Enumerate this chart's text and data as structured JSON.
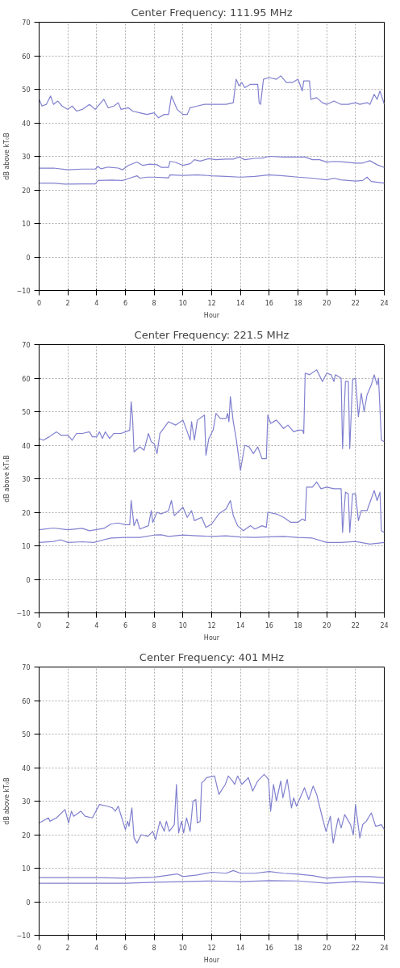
{
  "chart_data": [
    {
      "type": "line",
      "title": "Center Frequency: 111.95 MHz",
      "xlabel": "Hour",
      "ylabel": "dB above kT₀B",
      "xlim": [
        0,
        24
      ],
      "ylim": [
        -10,
        70
      ],
      "xticks": [
        0,
        2,
        4,
        6,
        8,
        10,
        12,
        14,
        16,
        18,
        20,
        22,
        24
      ],
      "yticks": [
        -10,
        0,
        10,
        20,
        30,
        40,
        50,
        60,
        70
      ],
      "grid": true,
      "line_style": "solid",
      "marker": "none",
      "series": [
        {
          "color": "#8080d0",
          "x": [
            0,
            0.2,
            0.5,
            0.8,
            1.0,
            1.3,
            1.6,
            2,
            2.3,
            2.6,
            3,
            3.5,
            3.9,
            4.2,
            4.5,
            4.8,
            5.2,
            5.5,
            5.7,
            6.2,
            6.5,
            7,
            7.5,
            8,
            8.3,
            8.7,
            9.0,
            9.2,
            9.6,
            10,
            10.3,
            10.5,
            11,
            11.5,
            12,
            12.5,
            13,
            13.5,
            13.7,
            13.9,
            14.1,
            14.3,
            14.7,
            15.2,
            15.3,
            15.4,
            15.6,
            16,
            16.5,
            16.8,
            17.2,
            17.6,
            18,
            18.3,
            18.4,
            18.8,
            18.9,
            19.3,
            19.7,
            20,
            20.5,
            21,
            21.5,
            22,
            22.3,
            22.8,
            23,
            23.3,
            23.5,
            23.7,
            24
          ],
          "values": [
            47,
            45,
            45.5,
            48,
            45.5,
            46.5,
            45,
            44,
            45,
            43.5,
            44,
            45.5,
            44,
            45.5,
            47,
            44.5,
            45,
            46,
            44,
            44.5,
            43.5,
            43,
            42.5,
            43,
            41.5,
            42.5,
            42.5,
            48,
            44,
            42.5,
            42.5,
            44.5,
            45,
            45.5,
            45.5,
            45.5,
            45.5,
            46,
            53,
            51,
            52,
            50.5,
            51.5,
            51.5,
            46,
            45.5,
            53,
            53.5,
            53,
            54,
            52,
            52,
            53,
            49.5,
            52.5,
            52.5,
            47,
            47.5,
            46,
            45.5,
            46.5,
            45.5,
            45.5,
            46,
            45.5,
            46,
            45.5,
            48.5,
            47,
            49.5,
            45.5
          ]
        },
        {
          "color": "#8080d0",
          "x": [
            0,
            1,
            2,
            3,
            3.9,
            4.1,
            4.3,
            4.8,
            5.5,
            5.8,
            6.2,
            6.8,
            7.2,
            7.7,
            8.2,
            8.5,
            9,
            9.1,
            9.5,
            10,
            10.5,
            10.8,
            11.2,
            11.8,
            12.3,
            13,
            13.5,
            13.9,
            14.3,
            15,
            15.5,
            16,
            17,
            18,
            18.5,
            19,
            19.5,
            20,
            20.5,
            21,
            22,
            22.5,
            23,
            23.5,
            24
          ],
          "values": [
            26.5,
            26.5,
            26,
            26.2,
            26.2,
            27,
            26.3,
            26.8,
            26.5,
            26,
            27.3,
            28.3,
            27.3,
            27.7,
            27.5,
            26.7,
            26.7,
            28.5,
            28.2,
            27.3,
            27.8,
            29,
            28.6,
            29.3,
            29,
            29.2,
            29.2,
            29.8,
            29,
            29.4,
            29.5,
            30,
            29.8,
            29.8,
            29.8,
            29,
            29,
            28.3,
            28.5,
            28.4,
            28,
            28,
            28.7,
            27.5,
            26.7
          ]
        },
        {
          "color": "#8080d0",
          "x": [
            0,
            1,
            1.8,
            3,
            3.9,
            4.1,
            5,
            5.8,
            6.3,
            6.8,
            7,
            7.5,
            8,
            9,
            9.1,
            10,
            11,
            12,
            13,
            14,
            15,
            16,
            17,
            18,
            19,
            20,
            20.5,
            21,
            22,
            22.5,
            22.8,
            23.1,
            24
          ],
          "values": [
            22,
            22,
            21.7,
            21.8,
            21.8,
            22.8,
            22.9,
            22.8,
            23.5,
            24.2,
            23.5,
            23.8,
            23.8,
            23.6,
            24.5,
            24.3,
            24.5,
            24.2,
            24,
            23.8,
            24,
            24.5,
            24.2,
            23.8,
            23.5,
            23,
            23.5,
            23,
            22.6,
            22.8,
            23.8,
            22.5,
            22
          ]
        }
      ]
    },
    {
      "type": "line",
      "title": "Center Frequency: 221.5 MHz",
      "xlabel": "Hour",
      "ylabel": "dB above kT₀B",
      "xlim": [
        0,
        24
      ],
      "ylim": [
        -10,
        70
      ],
      "xticks": [
        0,
        2,
        4,
        6,
        8,
        10,
        12,
        14,
        16,
        18,
        20,
        22,
        24
      ],
      "yticks": [
        -10,
        0,
        10,
        20,
        30,
        40,
        50,
        60,
        70
      ],
      "grid": true,
      "line_style": "solid",
      "marker": "none",
      "series": [
        {
          "color": "#8080d0",
          "x": [
            0,
            0.3,
            0.7,
            1.2,
            1.5,
            2,
            2.3,
            2.6,
            3,
            3.5,
            3.7,
            4,
            4.2,
            4.4,
            4.6,
            4.9,
            5.2,
            5.7,
            6,
            6.3,
            6.4,
            6.5,
            6.6,
            7,
            7.3,
            7.6,
            7.8,
            8,
            8.2,
            8.4,
            9,
            9.5,
            10,
            10.3,
            10.5,
            10.6,
            10.8,
            11,
            11.5,
            11.6,
            11.8,
            12.1,
            12.3,
            12.6,
            13,
            13.1,
            13.2,
            13.3,
            13.5,
            13.7,
            14,
            14.3,
            14.6,
            14.9,
            15.2,
            15.5,
            15.8,
            15.9,
            16.1,
            16.5,
            17,
            17.3,
            17.7,
            18,
            18.3,
            18.4,
            18.5,
            18.8,
            19.3,
            19.7,
            20,
            20.3,
            20.5,
            20.6,
            21,
            21.1,
            21.3,
            21.5,
            21.6,
            21.8,
            22,
            22.2,
            22.4,
            22.6,
            22.8,
            23.1,
            23.3,
            23.5,
            23.6,
            23.8,
            24
          ],
          "values": [
            42,
            41.5,
            42.5,
            44,
            43,
            43,
            41.5,
            43.5,
            43.5,
            44,
            42.5,
            42.5,
            44,
            42,
            44,
            42,
            43.5,
            43.5,
            44,
            44.5,
            53,
            48,
            38,
            39.5,
            38.5,
            43.5,
            41,
            40.5,
            37.5,
            43.5,
            47,
            46,
            47.5,
            44,
            41.5,
            47,
            41.5,
            47.5,
            49,
            37,
            42,
            44.5,
            49.5,
            48,
            48,
            49.5,
            47,
            54.5,
            47,
            42,
            32.5,
            40,
            39.5,
            37.5,
            39.5,
            36,
            36,
            49,
            46.5,
            47.5,
            45,
            46,
            44,
            44.5,
            44.5,
            43.5,
            61.5,
            61,
            62.5,
            59,
            61.5,
            61,
            59,
            61,
            60,
            39,
            59,
            59,
            39,
            59.5,
            60,
            48.5,
            55.5,
            50,
            55,
            58,
            61,
            58,
            60,
            41.5,
            41
          ]
        },
        {
          "color": "#8080d0",
          "x": [
            0,
            1,
            2,
            3,
            3.5,
            4.5,
            5,
            5.5,
            6,
            6.3,
            6.4,
            6.6,
            6.8,
            7,
            7.6,
            7.8,
            7.9,
            8.2,
            8.5,
            9,
            9.2,
            9.4,
            10,
            10.3,
            10.6,
            10.8,
            11.3,
            11.6,
            12,
            12.5,
            13,
            13.3,
            13.5,
            13.8,
            14.2,
            14.7,
            15,
            15.5,
            15.8,
            15.9,
            16.5,
            17,
            17.5,
            18,
            18.3,
            18.5,
            18.6,
            19,
            19.3,
            19.6,
            20,
            20.5,
            21,
            21.1,
            21.3,
            21.5,
            21.6,
            21.8,
            22,
            22.2,
            22.4,
            22.8,
            23.3,
            23.5,
            23.7,
            23.8,
            24
          ],
          "values": [
            14.8,
            15.3,
            14.8,
            15.2,
            14.5,
            15.2,
            16.5,
            16.8,
            16.3,
            16.3,
            23.5,
            16,
            18,
            15,
            16,
            20.5,
            17,
            20,
            19.5,
            20.5,
            23.5,
            19,
            21.5,
            18.5,
            20.5,
            17.5,
            18.5,
            15.5,
            16.5,
            19.5,
            21,
            23.5,
            19,
            16,
            14.5,
            16,
            15,
            16,
            15.5,
            20,
            19.5,
            18.5,
            17,
            17,
            18,
            17.5,
            27.5,
            27.5,
            29,
            27,
            27.5,
            27,
            27,
            14,
            26,
            25.5,
            14,
            25.5,
            25.5,
            17.5,
            20.5,
            20.5,
            26.5,
            23.5,
            26,
            14.5,
            14
          ]
        },
        {
          "color": "#8080d0",
          "x": [
            0,
            1,
            1.5,
            2,
            3,
            3.8,
            4.5,
            5,
            6,
            7,
            8,
            8.5,
            9,
            10,
            11,
            12,
            13,
            14,
            15,
            16,
            17,
            18,
            19,
            20,
            21,
            22,
            23,
            24
          ],
          "values": [
            11,
            11.3,
            11.8,
            11,
            11.2,
            11,
            11.8,
            12.3,
            12.5,
            12.5,
            13.2,
            13.3,
            12.8,
            13.2,
            13,
            12.8,
            13,
            12.6,
            12.5,
            12.7,
            12.8,
            12.5,
            12.3,
            11,
            11,
            11.3,
            10.5,
            11
          ]
        }
      ]
    },
    {
      "type": "line",
      "title": "Center Frequency: 401 MHz",
      "xlabel": "Hour",
      "ylabel": "dB above kT₀B",
      "xlim": [
        0,
        24
      ],
      "ylim": [
        -10,
        70
      ],
      "xticks": [
        0,
        2,
        4,
        6,
        8,
        10,
        12,
        14,
        16,
        18,
        20,
        22,
        24
      ],
      "yticks": [
        -10,
        0,
        10,
        20,
        30,
        40,
        50,
        60,
        70
      ],
      "grid": true,
      "line_style": "solid",
      "marker": "none",
      "series": [
        {
          "color": "#8080d0",
          "x": [
            0,
            0.65,
            0.75,
            1.2,
            1.8,
            2.05,
            2.25,
            2.4,
            2.9,
            3.2,
            3.7,
            4.2,
            4.75,
            5.1,
            5.3,
            5.5,
            6.0,
            6.15,
            6.25,
            6.45,
            6.6,
            6.8,
            7.1,
            7.55,
            7.9,
            8.1,
            8.4,
            8.7,
            8.85,
            9.05,
            9.4,
            9.55,
            9.7,
            9.9,
            10.05,
            10.25,
            10.5,
            10.7,
            10.9,
            11.0,
            11.2,
            11.3,
            11.45,
            11.65,
            12.2,
            12.5,
            12.95,
            13.15,
            13.45,
            13.6,
            13.8,
            14.1,
            14.55,
            14.85,
            15.2,
            15.65,
            15.95,
            16.1,
            16.3,
            16.5,
            16.8,
            16.95,
            17.25,
            17.55,
            17.7,
            17.9,
            18.45,
            18.75,
            19.05,
            19.3,
            19.7,
            19.95,
            20.25,
            20.45,
            20.8,
            21.0,
            21.25,
            21.65,
            21.85,
            22.0,
            22.3,
            22.5,
            22.75,
            23.1,
            23.4,
            23.8,
            24
          ],
          "values": [
            23.5,
            25,
            24,
            25,
            27.5,
            23.5,
            27,
            25.5,
            27,
            25.5,
            25,
            29,
            28.5,
            28,
            27,
            28.5,
            21.5,
            24,
            22.5,
            28,
            19,
            17.5,
            20,
            19.5,
            21,
            18.5,
            24,
            21,
            24,
            21,
            23,
            35,
            20.5,
            24,
            20.5,
            25,
            21,
            30,
            30.5,
            23.5,
            24,
            35.5,
            36,
            37,
            37.5,
            32,
            35,
            37.5,
            36,
            35,
            37.5,
            35,
            37,
            33,
            36,
            38,
            36.5,
            27,
            35,
            30,
            36,
            31,
            36.5,
            28,
            31,
            28.5,
            34,
            30.5,
            34.5,
            32,
            25,
            21,
            25.5,
            17.5,
            25,
            22,
            26,
            23,
            20,
            29,
            19,
            23,
            24,
            26.5,
            22.5,
            23,
            21.5
          ]
        },
        {
          "color": "#8080d0",
          "x": [
            0,
            2,
            4,
            6,
            8,
            9.6,
            10,
            11,
            12,
            13,
            13.5,
            14,
            15,
            16,
            17,
            18,
            19,
            20,
            21,
            22,
            23,
            24
          ],
          "values": [
            7.2,
            7.2,
            7.2,
            7,
            7.3,
            8.3,
            7.5,
            8,
            8.8,
            8.5,
            9.3,
            8.5,
            8.5,
            9,
            8.5,
            8.2,
            7.8,
            7,
            7.3,
            7.5,
            7.5,
            7.2
          ]
        },
        {
          "color": "#8080d0",
          "x": [
            0,
            2,
            4,
            6,
            8,
            10,
            12,
            14,
            16,
            18,
            20,
            22,
            24
          ],
          "values": [
            5.5,
            5.5,
            5.5,
            5.5,
            5.8,
            6,
            6.2,
            6,
            6.3,
            6.2,
            5.5,
            6,
            5.5
          ]
        }
      ]
    }
  ]
}
